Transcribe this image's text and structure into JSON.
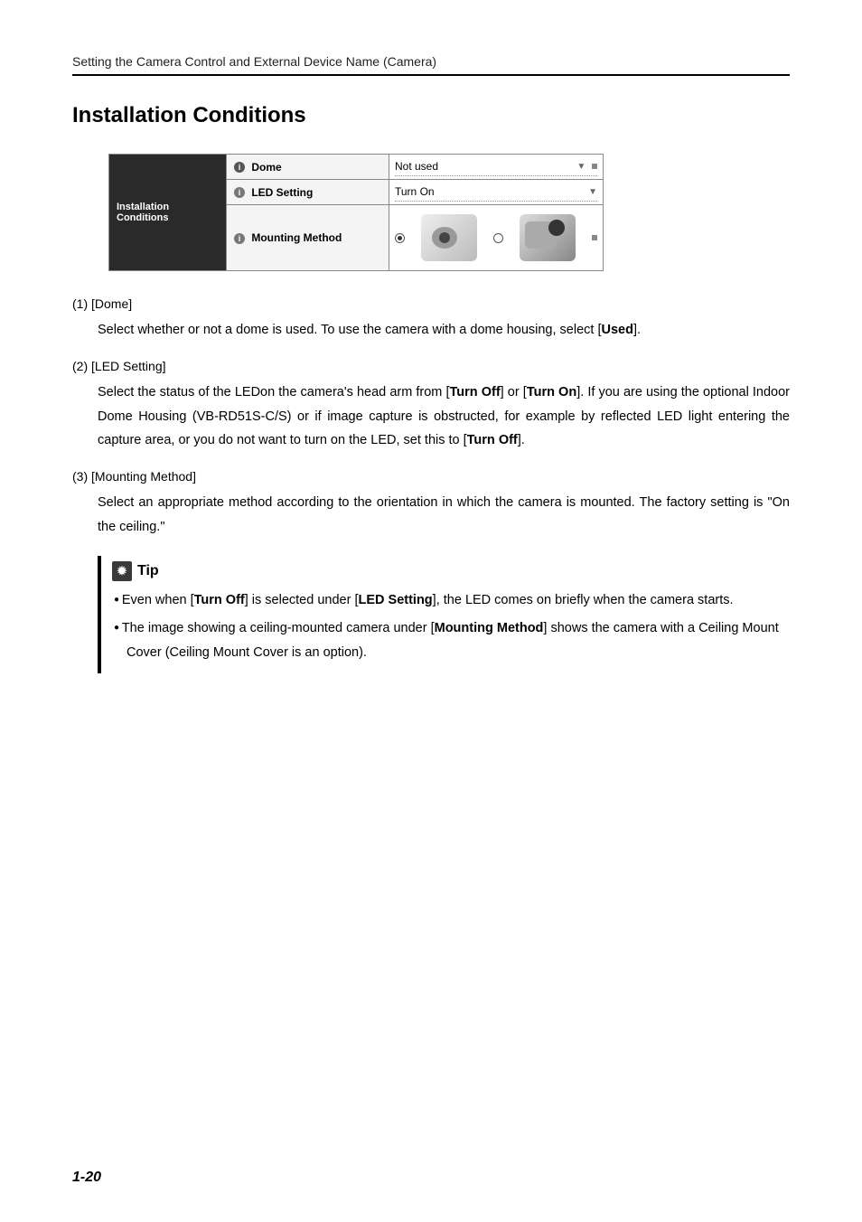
{
  "header": {
    "breadcrumb": "Setting the Camera Control and External Device Name (Camera)"
  },
  "section": {
    "title": "Installation Conditions"
  },
  "table": {
    "category": "Installation Conditions",
    "rows": [
      {
        "label": "Dome",
        "value": "Not used",
        "has_end_dot": true
      },
      {
        "label": "LED Setting",
        "value": "Turn On",
        "has_end_dot": false
      },
      {
        "label": "Mounting Method",
        "value": "",
        "has_end_dot": true,
        "is_mount": true
      }
    ]
  },
  "entries": [
    {
      "num": "(1)",
      "head": "[Dome]",
      "body_pre": "Select whether or not a dome is used. To use the camera with a dome housing, select [",
      "body_bold": "Used",
      "body_post": "]."
    },
    {
      "num": "(2)",
      "head": "[LED Setting]",
      "body_raw": "Select the status of the LEDon the camera's head arm from [<b>Turn Off</b>] or [<b>Turn On</b>]. If you are using the optional Indoor Dome Housing (VB-RD51S-C/S) or if image capture is obstructed, for example by reflected LED light entering the capture area, or you do not want to turn on the LED, set this to [<b>Turn Off</b>]."
    },
    {
      "num": "(3)",
      "head": "[Mounting Method]",
      "body_raw": "Select an appropriate method according to the orientation in which the camera is mounted. The factory setting is \"On the ceiling.\""
    }
  ],
  "tip": {
    "label": "Tip",
    "items": [
      "Even when [<b>Turn Off</b>] is selected under [<b>LED Setting</b>], the LED comes on briefly when the camera starts.",
      "The image showing a ceiling-mounted camera under [<b>Mounting Method</b>] shows the camera with a Ceiling Mount Cover (Ceiling Mount Cover is an option)."
    ]
  },
  "page": {
    "number": "1-20"
  }
}
